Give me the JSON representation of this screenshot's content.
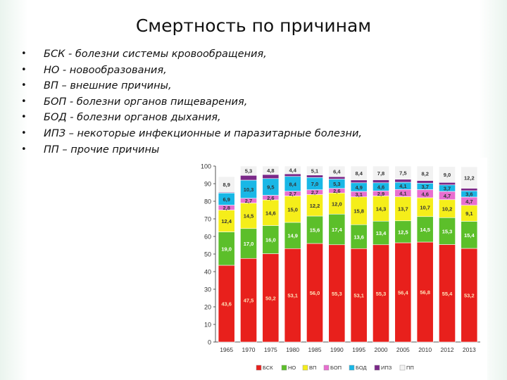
{
  "title": "Смертность по причинам",
  "bullets": [
    "БСК - болезни системы кровообращения,",
    "НО - новообразования,",
    "ВП – внешние причины,",
    "БОП - болезни органов пищеварения,",
    "БОД - болезни органов дыхания,",
    "ИПЗ – некоторые инфекционные и паразитарные болезни,",
    "ПП – прочие причины"
  ],
  "bullet_symbol": "•",
  "chart_data": {
    "type": "bar",
    "stacked": true,
    "categories": [
      "1965",
      "1970",
      "1975",
      "1980",
      "1985",
      "1990",
      "1995",
      "2000",
      "2005",
      "2010",
      "2012",
      "2013"
    ],
    "ylim": [
      0,
      100
    ],
    "yticks": [
      "0",
      "10",
      "20",
      "30",
      "40",
      "50",
      "60",
      "70",
      "80",
      "90",
      "100"
    ],
    "grid": false,
    "legend_position": "bottom",
    "series": [
      {
        "name": "БСК",
        "color": "#e8201c",
        "label_color": "#fde1b8",
        "values": [
          43.6,
          47.5,
          50.2,
          53.1,
          56.0,
          55.3,
          53.1,
          55.3,
          56.4,
          56.8,
          55.4,
          53.2
        ],
        "labels": [
          "43,6",
          "47,5",
          "50,2",
          "53,1",
          "56,0",
          "55,3",
          "53,1",
          "55,3",
          "56,4",
          "56,8",
          "55,4",
          "53,2"
        ]
      },
      {
        "name": "НО",
        "color": "#5cbf2a",
        "label_color": "#ffffff",
        "values": [
          19.0,
          17.0,
          16.0,
          14.9,
          15.6,
          17.4,
          13.6,
          13.4,
          12.5,
          14.5,
          15.3,
          15.4
        ],
        "labels": [
          "19,0",
          "17,0",
          "16,0",
          "14,9",
          "15,6",
          "17,4",
          "13,6",
          "13,4",
          "12,5",
          "14,5",
          "15,3",
          "15,4"
        ]
      },
      {
        "name": "ВП",
        "color": "#f5ee1a",
        "label_color": "#333333",
        "values": [
          12.4,
          14.5,
          14.6,
          15.0,
          12.2,
          12.0,
          15.8,
          14.3,
          13.7,
          10.7,
          10.2,
          9.1
        ],
        "labels": [
          "12,4",
          "14,5",
          "14,6",
          "15,0",
          "12,2",
          "12,0",
          "15,8",
          "14,3",
          "13,7",
          "10,7",
          "10,2",
          "9,1"
        ]
      },
      {
        "name": "БОП",
        "color": "#e86fd0",
        "label_color": "#333333",
        "values": [
          2.8,
          2.7,
          2.6,
          2.7,
          2.7,
          2.6,
          3.1,
          2.9,
          4.1,
          4.6,
          4.7,
          4.7
        ],
        "labels": [
          "2,8",
          "2,7",
          "2,6",
          "2,7",
          "2,7",
          "2,6",
          "3,1",
          "2,9",
          "4,1",
          "4,6",
          "4,7",
          "4,7"
        ]
      },
      {
        "name": "БОД",
        "color": "#19b7e6",
        "label_color": "#333333",
        "values": [
          6.9,
          10.3,
          9.5,
          8.4,
          7.0,
          5.3,
          4.9,
          4.6,
          4.1,
          3.7,
          3.7,
          3.6
        ],
        "labels": [
          "6,9",
          "10,3",
          "9,5",
          "8,4",
          "7,0",
          "5,3",
          "4,9",
          "4,6",
          "4,1",
          "3,7",
          "3,7",
          "3,6"
        ]
      },
      {
        "name": "ИПЗ",
        "color": "#7a2888",
        "label_color": "#ffffff",
        "values": [
          0.4,
          2.7,
          2.3,
          1.5,
          1.4,
          1.4,
          1.6,
          1.7,
          1.7,
          1.5,
          1.4,
          1.4
        ],
        "labels": [
          "",
          "",
          "",
          "",
          "",
          "",
          "",
          "",
          "",
          "",
          "",
          ""
        ]
      },
      {
        "name": "ПП",
        "color": "#f2f2f2",
        "label_color": "#333333",
        "values": [
          8.9,
          5.3,
          4.8,
          4.4,
          5.1,
          6.4,
          8.4,
          7.8,
          7.5,
          8.2,
          9.0,
          12.2
        ],
        "labels": [
          "8,9",
          "5,3",
          "4,8",
          "4,4",
          "5,1",
          "6,4",
          "8,4",
          "7,8",
          "7,5",
          "8,2",
          "9,0",
          "12,2"
        ]
      }
    ]
  }
}
